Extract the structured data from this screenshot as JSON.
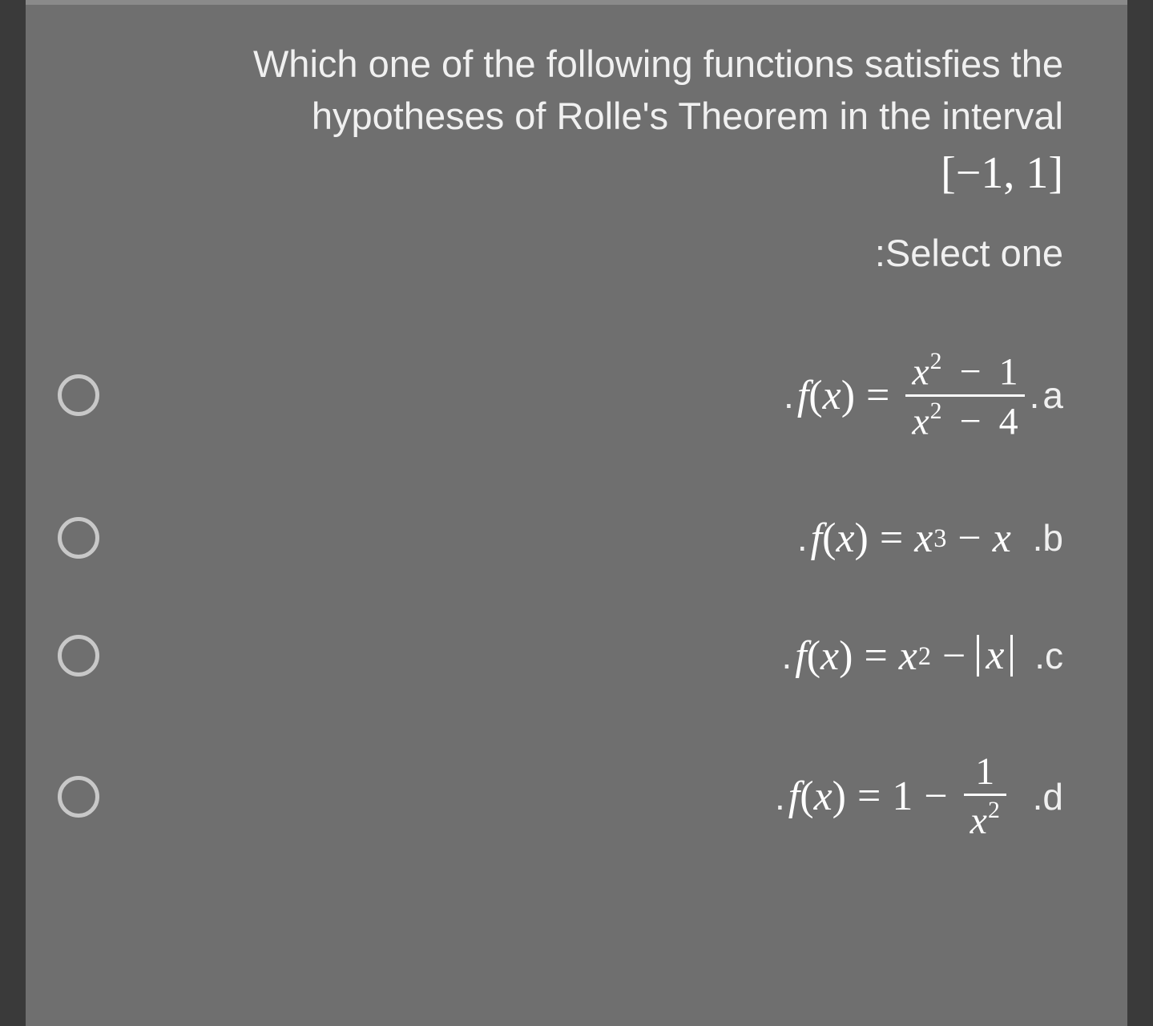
{
  "colors": {
    "outer_bg": "#3a3a3a",
    "panel_bg": "#6f6f6f",
    "panel_border_top": "#8a8a8a",
    "text": "#f0f0f0",
    "math": "#ffffff",
    "radio_border": "#c8c8c8"
  },
  "typography": {
    "question_fontsize": 47,
    "math_fontsize": 52,
    "interval_fontsize": 54,
    "letter_fontsize": 46
  },
  "question": {
    "line1": "Which one of the following functions satisfies the",
    "line2": "hypotheses of Rolle's Theorem in the interval",
    "interval": "[−1,  1]",
    "select_label": ":Select one"
  },
  "options": [
    {
      "letter": "a",
      "type": "fraction",
      "formula": {
        "lhs_func": "f",
        "lhs_arg": "x",
        "numerator_x": "x",
        "numerator_exp": "2",
        "numerator_op": "−",
        "numerator_const": "1",
        "denominator_x": "x",
        "denominator_exp": "2",
        "denominator_op": "−",
        "denominator_const": "4"
      }
    },
    {
      "letter": "b",
      "type": "polynomial",
      "formula": {
        "lhs_func": "f",
        "lhs_arg": "x",
        "term1_x": "x",
        "term1_exp": "3",
        "op": "−",
        "term2_x": "x"
      }
    },
    {
      "letter": "c",
      "type": "abs",
      "formula": {
        "lhs_func": "f",
        "lhs_arg": "x",
        "term1_x": "x",
        "term1_exp": "2",
        "op": "−",
        "abs_x": "x"
      }
    },
    {
      "letter": "d",
      "type": "reciprocal",
      "formula": {
        "lhs_func": "f",
        "lhs_arg": "x",
        "const": "1",
        "op": "−",
        "num": "1",
        "den_x": "x",
        "den_exp": "2"
      }
    }
  ]
}
